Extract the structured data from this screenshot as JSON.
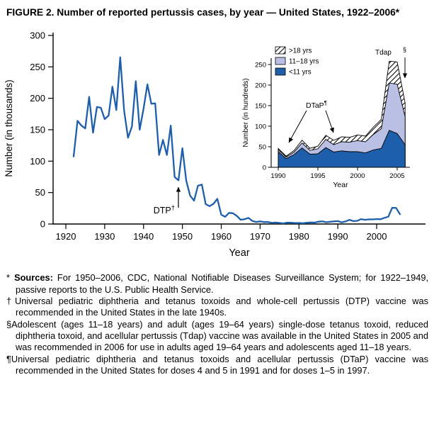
{
  "title": "FIGURE 2. Number of reported pertussis cases, by year — United States, 1922–2006*",
  "colors": {
    "line": "#1d5faa",
    "under11_fill": "#1d5faa",
    "adolescent_fill": "#b9c0e3",
    "axis": "#000000",
    "background": "#ffffff"
  },
  "chart_data": [
    {
      "type": "line",
      "name": "main-pertussis-by-year",
      "ylabel": "Number (in thousands)",
      "xlabel": "Year",
      "ylim": [
        0,
        300
      ],
      "yticks": [
        0,
        50,
        100,
        150,
        200,
        250,
        300
      ],
      "xticks": [
        1920,
        1930,
        1940,
        1950,
        1960,
        1970,
        1980,
        1990,
        2000
      ],
      "x_start": 1922,
      "x_end": 2006,
      "annotation": {
        "text": "DTP",
        "sup": "†"
      },
      "values": [
        107.5,
        164.2,
        156.6,
        152.0,
        202.2,
        145.3,
        186.2,
        185.0,
        166.9,
        172.6,
        218.5,
        181.4,
        265.3,
        180.5,
        137.3,
        155.0,
        227.3,
        150.0,
        183.9,
        222.2,
        191.4,
        191.9,
        109.9,
        133.8,
        109.9,
        156.5,
        74.7,
        69.5,
        120.7,
        68.7,
        45.0,
        37.1,
        60.9,
        62.8,
        31.7,
        28.3,
        32.1,
        40.0,
        14.8,
        11.5,
        17.7,
        17.1,
        13.0,
        6.8,
        7.7,
        9.7,
        4.8,
        3.3,
        4.2,
        3.0,
        3.3,
        1.8,
        2.4,
        1.7,
        1.0,
        2.2,
        2.1,
        1.6,
        1.7,
        1.2,
        1.9,
        2.5,
        2.3,
        3.6,
        4.2,
        2.8,
        3.5,
        4.2,
        4.6,
        2.7,
        4.1,
        6.6,
        4.6,
        5.1,
        7.8,
        6.6,
        7.4,
        7.3,
        7.9,
        7.6,
        9.8,
        11.6,
        25.8,
        25.6,
        15.6
      ]
    },
    {
      "type": "area",
      "name": "inset-pertussis-by-age-group",
      "ylabel": "Number (in hundreds)",
      "xlabel": "Year",
      "ylim": [
        0,
        250
      ],
      "yticks": [
        0,
        50,
        100,
        150,
        200,
        250
      ],
      "xticks": [
        1990,
        1995,
        2000,
        2005
      ],
      "x_start": 1990,
      "x_end": 2006,
      "legend": [
        ">18 yrs",
        "11–18 yrs",
        "<11 yrs"
      ],
      "annotations": [
        {
          "text": "DTaP",
          "sup": "¶"
        },
        {
          "text": "Tdap",
          "sup": "§"
        }
      ],
      "series": [
        {
          "name": "<11 yrs",
          "values": [
            38,
            21,
            31,
            47,
            32,
            33,
            48,
            37,
            40,
            38,
            38,
            35,
            42,
            46,
            90,
            82,
            55
          ]
        },
        {
          "name": "11–18 yrs",
          "values": [
            5,
            4,
            6,
            12,
            9,
            12,
            20,
            18,
            22,
            23,
            27,
            27,
            38,
            48,
            115,
            120,
            68
          ]
        },
        {
          "name": ">18 yrs",
          "values": [
            2.7,
            2.2,
            3.8,
            6.9,
            5.2,
            6.4,
            10,
            10.6,
            12.1,
            12,
            13.7,
            13.8,
            17.7,
            22.5,
            53.3,
            54.2,
            33.3
          ]
        }
      ]
    }
  ],
  "footnotes": [
    {
      "symbol": "* ",
      "bold": "Sources:",
      "text": "For 1950–2006, CDC, National Notifiable Diseases Surveillance System; for 1922–1949, passive reports to the U.S. Public Health Service."
    },
    {
      "symbol": "†",
      "bold": "",
      "text": "Universal pediatric diphtheria and tetanus toxoids and whole-cell pertussis (DTP) vaccine was recommended in the United States in the late 1940s."
    },
    {
      "symbol": "§",
      "bold": "",
      "text": "Adolescent (ages 11–18 years) and adult (ages 19–64 years) single-dose tetanus toxoid, reduced diphtheria toxoid, and acellular pertussis (Tdap) vaccine was available in the United States in 2005 and was recommended in 2006 for use in adults aged 19–64 years and adolescents aged 11–18 years."
    },
    {
      "symbol": "¶",
      "bold": "",
      "text": "Universal pediatric diphtheria and tetanus toxoids and acellular pertussis (DTaP) vaccine was recommended in the United States for doses 4 and 5 in 1991 and for doses 1–5 in 1997."
    }
  ]
}
